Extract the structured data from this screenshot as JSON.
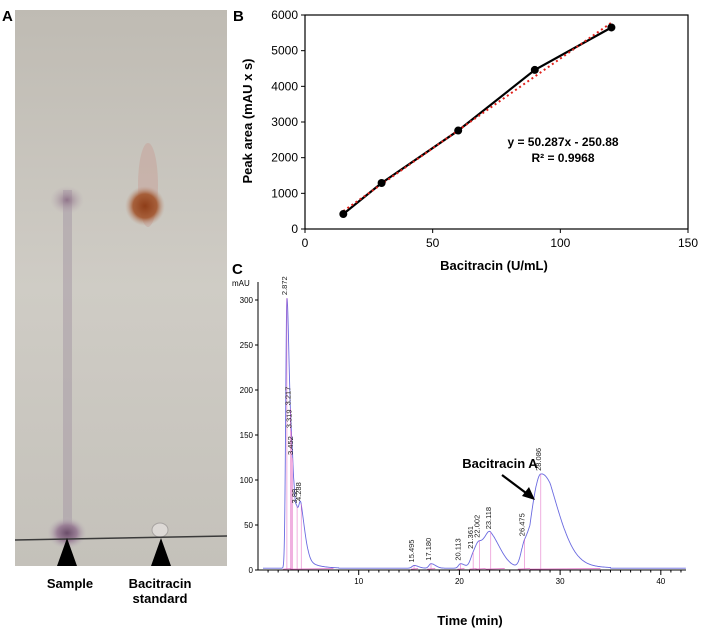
{
  "panels": {
    "a": "A",
    "b": "B",
    "c": "C"
  },
  "tlc": {
    "lane1_label": "Sample",
    "lane2_label_line1": "Bacitracin",
    "lane2_label_line2": "standard",
    "colors": {
      "plate": "#c9c7c0",
      "sample_spot": "#8a6a86",
      "standard_spot": "#9b4a22",
      "baseline": "#3a3a3a"
    }
  },
  "chart_data": [
    {
      "type": "scatter",
      "panel": "B",
      "xlabel": "Bacitracin (U/mL)",
      "ylabel": "Peak area (mAU x s)",
      "xlim": [
        0,
        150
      ],
      "ylim": [
        0,
        6000
      ],
      "xticks": [
        0,
        50,
        100,
        150
      ],
      "yticks": [
        0,
        1000,
        2000,
        3000,
        4000,
        5000,
        6000
      ],
      "grid": false,
      "series": [
        {
          "x": [
            15,
            30,
            60,
            90,
            120
          ],
          "y": [
            420,
            1290,
            2760,
            4460,
            5650
          ],
          "color": "#000000"
        }
      ],
      "trendline": {
        "slope": 50.287,
        "intercept": -250.88,
        "x_range": [
          15,
          120
        ],
        "color": "#e0201a",
        "style": "dotted"
      },
      "equation": "y = 50.287x - 250.88",
      "r2": "R² = 0.9968"
    },
    {
      "type": "line",
      "panel": "C",
      "ylabel": "mAU",
      "xlabel": "Time (min)",
      "xlim": [
        0,
        42.5
      ],
      "ylim": [
        0,
        320
      ],
      "xticks": [
        10,
        20,
        30,
        40
      ],
      "yticks": [
        0,
        50,
        100,
        150,
        200,
        250,
        300
      ],
      "signal_color": "#6a6ae0",
      "baseline_color": "#e060c0",
      "peaks": [
        {
          "t": 2.872,
          "label": "2.872",
          "h": 300,
          "w": 0.12
        },
        {
          "t": 3.217,
          "label": "3.217",
          "h": 28,
          "w": 0.1
        },
        {
          "t": 3.319,
          "label": "3.319",
          "h": 30,
          "w": 0.1
        },
        {
          "t": 3.452,
          "label": "3.452",
          "h": 30,
          "w": 0.1
        },
        {
          "t": 3.88,
          "label": "3.88",
          "h": 33,
          "w": 0.16
        },
        {
          "t": 4.288,
          "label": "4.288",
          "h": 38,
          "w": 0.2
        },
        {
          "t": 15.495,
          "label": "15.495",
          "h": 3,
          "w": 0.2
        },
        {
          "t": 17.18,
          "label": "17.180",
          "h": 5,
          "w": 0.2
        },
        {
          "t": 20.113,
          "label": "20.113",
          "h": 5,
          "w": 0.2
        },
        {
          "t": 21.361,
          "label": "21.361",
          "h": 10,
          "w": 0.3
        },
        {
          "t": 22.002,
          "label": "22.002",
          "h": 22,
          "w": 0.45
        },
        {
          "t": 23.118,
          "label": "23.118",
          "h": 28,
          "w": 0.5
        },
        {
          "t": 26.475,
          "label": "26.475",
          "h": 22,
          "w": 0.35
        },
        {
          "t": 28.086,
          "label": "28.086",
          "h": 76,
          "w": 0.8
        }
      ],
      "annotation": "Bacitracin A"
    }
  ]
}
